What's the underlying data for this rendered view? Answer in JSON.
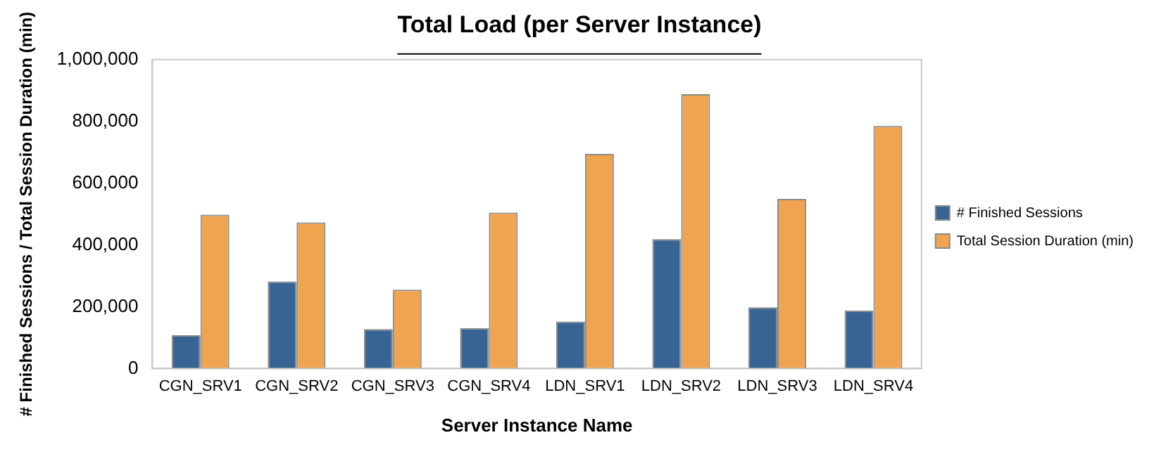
{
  "chart_data": {
    "type": "bar",
    "title": "Total Load (per Server Instance)",
    "xlabel": "Server Instance Name",
    "ylabel": "# Finished Sessions / Total Session Duration (min)",
    "categories": [
      "CGN_SRV1",
      "CGN_SRV2",
      "CGN_SRV3",
      "CGN_SRV4",
      "LDN_SRV1",
      "LDN_SRV2",
      "LDN_SRV3",
      "LDN_SRV4"
    ],
    "series": [
      {
        "name": "# Finished Sessions",
        "color": "#386494",
        "values": [
          108000,
          282000,
          128000,
          131000,
          152000,
          419000,
          198000,
          188000
        ]
      },
      {
        "name": "Total Session Duration (min)",
        "color": "#f0a450",
        "values": [
          498000,
          473000,
          255000,
          505000,
          695000,
          888000,
          549000,
          785000
        ]
      }
    ],
    "ylim": [
      0,
      1000000
    ],
    "yticks": [
      {
        "value": 0,
        "label": "0"
      },
      {
        "value": 200000,
        "label": "200,000"
      },
      {
        "value": 400000,
        "label": "400,000"
      },
      {
        "value": 600000,
        "label": "600,000"
      },
      {
        "value": 800000,
        "label": "800,000"
      },
      {
        "value": 1000000,
        "label": "1,000,000"
      }
    ],
    "grid": false,
    "legend": "right"
  }
}
